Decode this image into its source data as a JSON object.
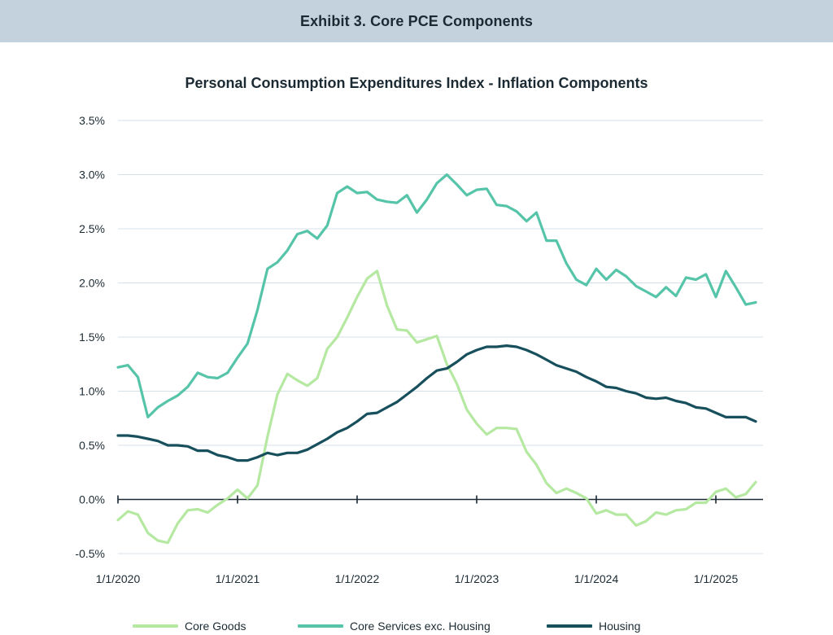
{
  "header": {
    "title": "Exhibit 3. Core PCE Components"
  },
  "colors": {
    "header_bg": "#c3d2dc",
    "core_goods": "#b5e8a1",
    "core_services": "#56c4a8",
    "housing": "#174f5c",
    "grid": "#d4e1e8",
    "zero_line": "#1b2a33"
  },
  "chart_data": {
    "type": "line",
    "title": "Personal Consumption Expenditures Index - Inflation Components",
    "xlabel": "",
    "ylabel": "",
    "x_start": "2020-01",
    "x_end": "2025-05",
    "x_ticks": [
      "1/1/2020",
      "1/1/2021",
      "1/1/2022",
      "1/1/2023",
      "1/1/2024",
      "1/1/2025"
    ],
    "y_ticks": [
      "3.5%",
      "3.0%",
      "2.5%",
      "2.0%",
      "1.5%",
      "1.0%",
      "0.5%",
      "0.0%",
      "-0.5%"
    ],
    "ylim": [
      -0.5,
      3.5
    ],
    "grid": true,
    "legend_position": "bottom",
    "series": [
      {
        "name": "Core Goods",
        "color": "#b5e8a1",
        "values": [
          -0.19,
          -0.11,
          -0.14,
          -0.31,
          -0.38,
          -0.4,
          -0.22,
          -0.1,
          -0.09,
          -0.12,
          -0.05,
          0.01,
          0.09,
          0.01,
          0.13,
          0.58,
          0.97,
          1.16,
          1.1,
          1.05,
          1.12,
          1.39,
          1.5,
          1.68,
          1.87,
          2.04,
          2.11,
          1.79,
          1.57,
          1.56,
          1.45,
          1.48,
          1.51,
          1.25,
          1.07,
          0.83,
          0.7,
          0.6,
          0.66,
          0.66,
          0.65,
          0.44,
          0.32,
          0.15,
          0.06,
          0.1,
          0.06,
          0.01,
          -0.13,
          -0.1,
          -0.14,
          -0.14,
          -0.24,
          -0.2,
          -0.12,
          -0.14,
          -0.1,
          -0.09,
          -0.03,
          -0.03,
          0.07,
          0.1,
          0.02,
          0.05,
          0.16
        ]
      },
      {
        "name": "Core Services exc. Housing",
        "color": "#56c4a8",
        "values": [
          1.22,
          1.24,
          1.13,
          0.76,
          0.85,
          0.91,
          0.96,
          1.04,
          1.17,
          1.13,
          1.12,
          1.17,
          1.31,
          1.44,
          1.75,
          2.13,
          2.19,
          2.3,
          2.45,
          2.48,
          2.41,
          2.53,
          2.83,
          2.89,
          2.83,
          2.84,
          2.77,
          2.75,
          2.74,
          2.81,
          2.65,
          2.77,
          2.92,
          3.0,
          2.91,
          2.81,
          2.86,
          2.87,
          2.72,
          2.71,
          2.66,
          2.57,
          2.65,
          2.39,
          2.39,
          2.18,
          2.03,
          1.98,
          2.13,
          2.03,
          2.12,
          2.06,
          1.97,
          1.92,
          1.87,
          1.96,
          1.88,
          2.05,
          2.03,
          2.08,
          1.87,
          2.11,
          1.96,
          1.8,
          1.82
        ]
      },
      {
        "name": "Housing",
        "color": "#174f5c",
        "values": [
          0.59,
          0.59,
          0.58,
          0.56,
          0.54,
          0.5,
          0.5,
          0.49,
          0.45,
          0.45,
          0.41,
          0.39,
          0.36,
          0.36,
          0.39,
          0.43,
          0.41,
          0.43,
          0.43,
          0.46,
          0.51,
          0.56,
          0.62,
          0.66,
          0.72,
          0.79,
          0.8,
          0.85,
          0.9,
          0.97,
          1.04,
          1.12,
          1.19,
          1.21,
          1.27,
          1.34,
          1.38,
          1.41,
          1.41,
          1.42,
          1.41,
          1.38,
          1.34,
          1.29,
          1.24,
          1.21,
          1.18,
          1.13,
          1.09,
          1.04,
          1.03,
          1.0,
          0.98,
          0.94,
          0.93,
          0.94,
          0.91,
          0.89,
          0.85,
          0.84,
          0.8,
          0.76,
          0.76,
          0.76,
          0.72
        ]
      }
    ]
  }
}
